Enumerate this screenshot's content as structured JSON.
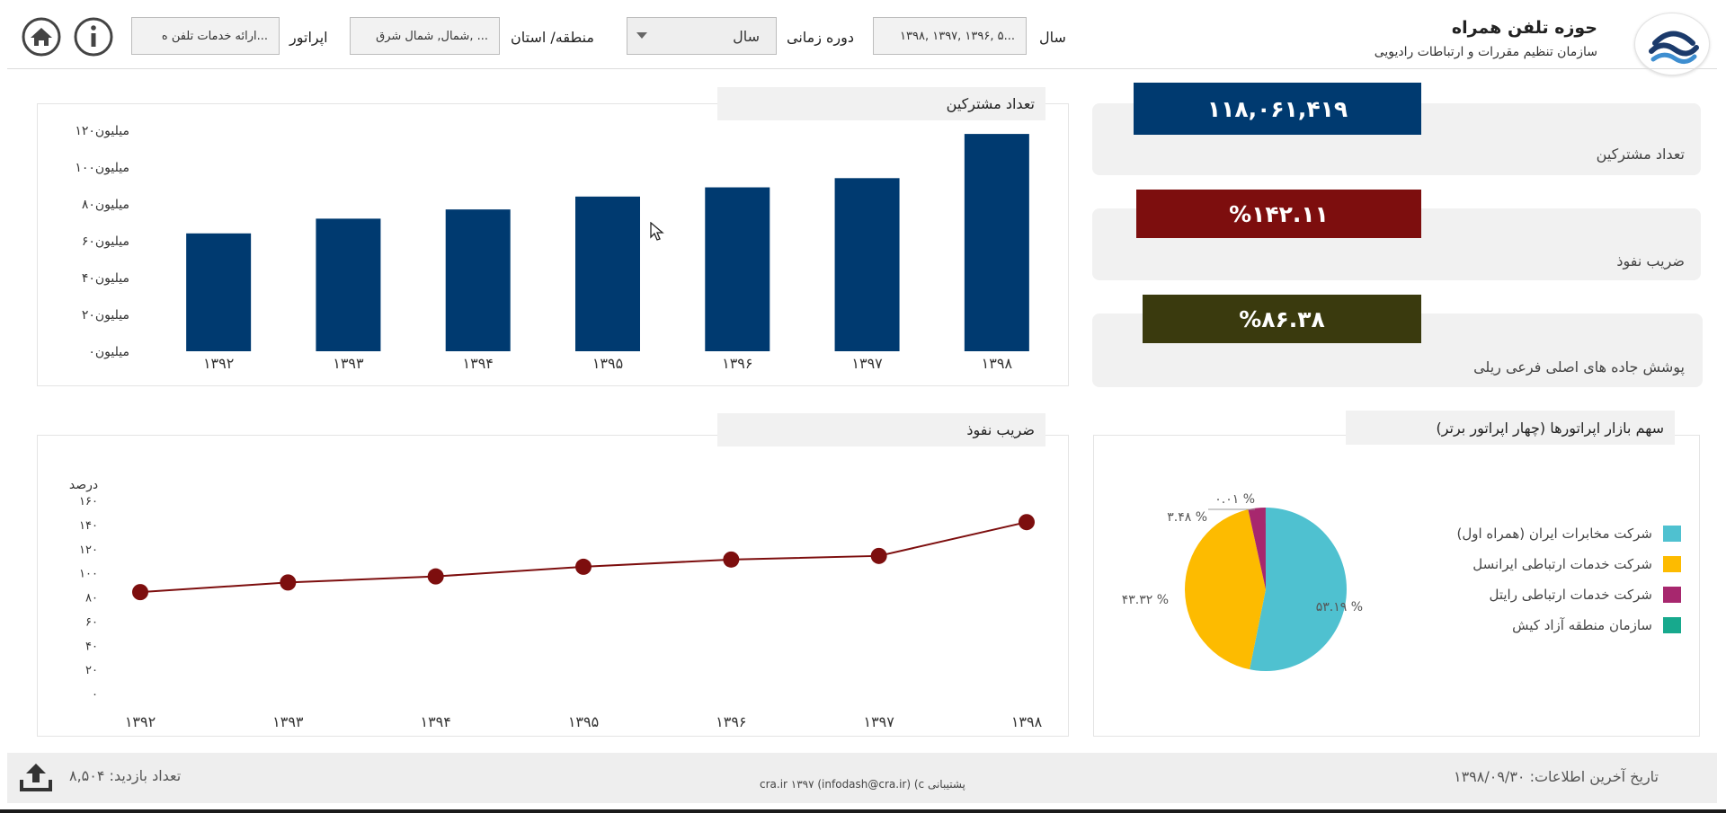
{
  "header": {
    "title": "حوزه تلفن همراه",
    "subtitle": "سازمان تنظیم مقررات و ارتباطات رادیویی",
    "filters": {
      "year_label": "سال",
      "year_value": "۱۳۹۸, ۱۳۹۷, ۱۳۹۶, ۵...",
      "period_label": "دوره زمانی",
      "period_value": "سال",
      "region_label": "منطقه/ استان",
      "region_value": "شمال, شمال شرق, ...",
      "operator_label": "اپراتور",
      "operator_value": "ارائه خدمات تلفن ه..."
    }
  },
  "kpis": [
    {
      "label": "تعداد مشترکین",
      "value": "۱۱۸,۰۶۱,۴۱۹",
      "color": "#003a70"
    },
    {
      "label": "ضریب نفوذ",
      "value": "%۱۴۲.۱۱",
      "color": "#7d0e0e"
    },
    {
      "label": "پوشش جاده های اصلی فرعی ریلی",
      "value": "%۸۶.۳۸",
      "color": "#3a3a0e"
    }
  ],
  "subscribers_chart_title": "تعداد مشترکین",
  "penetration_chart_title": "ضریب نفوذ",
  "market_share_title": "سهم بازار اپراتورها (چهار اپراتور برتر)",
  "chart_data": [
    {
      "type": "bar",
      "title": "تعداد مشترکین",
      "categories": [
        "۱۳۹۲",
        "۱۳۹۳",
        "۱۳۹۴",
        "۱۳۹۵",
        "۱۳۹۶",
        "۱۳۹۷",
        "۱۳۹۸"
      ],
      "values": [
        64,
        72,
        77,
        84,
        89,
        94,
        118
      ],
      "y_ticks": [
        "میلیون۰",
        "میلیون۲۰",
        "میلیون۴۰",
        "میلیون۶۰",
        "میلیون۸۰",
        "میلیون۱۰۰",
        "میلیون۱۲۰"
      ],
      "ylim": [
        0,
        120
      ],
      "color": "#003a70"
    },
    {
      "type": "line",
      "title": "ضریب نفوذ",
      "ylabel": "درصد",
      "categories": [
        "۱۳۹۲",
        "۱۳۹۳",
        "۱۳۹۴",
        "۱۳۹۵",
        "۱۳۹۶",
        "۱۳۹۷",
        "۱۳۹۸"
      ],
      "values": [
        84,
        92,
        97,
        105,
        111,
        114,
        142
      ],
      "y_ticks": [
        "۰",
        "۲۰",
        "۴۰",
        "۶۰",
        "۸۰",
        "۱۰۰",
        "۱۲۰",
        "۱۴۰",
        "۱۶۰"
      ],
      "ylim": [
        0,
        160
      ],
      "color": "#7d0e0e"
    },
    {
      "type": "pie",
      "title": "سهم بازار اپراتورها (چهار اپراتور برتر)",
      "slices": [
        {
          "name": "شرکت مخابرات ایران (همراه اول)",
          "value": 53.19,
          "label": "۵۳.۱۹ %",
          "color": "#4fc1d0"
        },
        {
          "name": "شرکت خدمات ارتباطی ایرانسل",
          "value": 43.32,
          "label": "۴۳.۳۲ %",
          "color": "#fdbb00"
        },
        {
          "name": "شرکت خدمات ارتباطی رایتل",
          "value": 3.48,
          "label": "۳.۴۸ %",
          "color": "#a7276e"
        },
        {
          "name": "سازمان منطقه آزاد کیش",
          "value": 0.01,
          "label": "۰.۰۱ %",
          "color": "#17a98d"
        }
      ]
    }
  ],
  "footer": {
    "last_update": "تاریخ آخرین اطلاعات: ۱۳۹۸/۰۹/۳۰",
    "support": "cra.ir ۱۳۹۷ (infodash@cra.ir) (c پشتیبانی",
    "visits": "تعداد بازدید: ۸,۵۰۴"
  }
}
